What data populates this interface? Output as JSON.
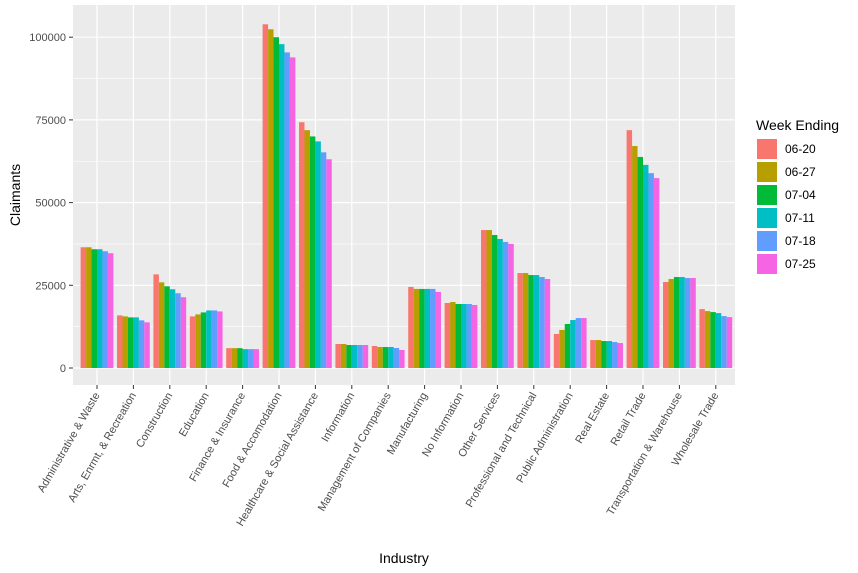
{
  "chart_data": {
    "type": "bar",
    "title": "",
    "xlabel": "Industry",
    "ylabel": "Claimants",
    "ylim": [
      -4500,
      110000
    ],
    "yticks": [
      0,
      25000,
      50000,
      75000,
      100000
    ],
    "ytick_labels": [
      "0",
      "25000",
      "50000",
      "75000",
      "100000"
    ],
    "grid": true,
    "legend": {
      "title": "Week Ending",
      "placement": "right"
    },
    "categories": [
      "Administrative & Waste",
      "Arts, Enrmt, & Recreation",
      "Construction",
      "Education",
      "Finance & Insurance",
      "Food & Accomodation",
      "Healthcare & Social Assistance",
      "Information",
      "Management of Companies",
      "Manufacturing",
      "No Information",
      "Other Services",
      "Professional and Technical",
      "Public Administration",
      "Real Estate",
      "Retail Trade",
      "Transportation & Warehouse",
      "Wholesale Trade"
    ],
    "series": [
      {
        "name": "06-20",
        "color": "#F8766D",
        "values": [
          36500,
          15900,
          28300,
          15600,
          6000,
          103900,
          74300,
          7250,
          6650,
          24500,
          19650,
          41700,
          28700,
          10300,
          8450,
          71900,
          26000,
          17800
        ]
      },
      {
        "name": "06-27",
        "color": "#B79F00",
        "values": [
          36500,
          15600,
          25900,
          16200,
          6000,
          102400,
          71900,
          7250,
          6350,
          23900,
          19950,
          41700,
          28700,
          11500,
          8450,
          67100,
          26900,
          17200
        ]
      },
      {
        "name": "07-04",
        "color": "#00BA38",
        "values": [
          35900,
          15300,
          24700,
          16800,
          6000,
          100000,
          70000,
          6950,
          6350,
          23900,
          19350,
          40200,
          28100,
          13300,
          8150,
          63800,
          27500,
          16900
        ]
      },
      {
        "name": "07-11",
        "color": "#00BFC4",
        "values": [
          35900,
          15300,
          23800,
          17400,
          5700,
          97900,
          68500,
          6950,
          6350,
          23900,
          19350,
          39000,
          28100,
          14500,
          8150,
          61400,
          27500,
          16600
        ]
      },
      {
        "name": "07-18",
        "color": "#619CFF",
        "values": [
          35300,
          14400,
          22600,
          17400,
          5700,
          95400,
          65200,
          6950,
          6050,
          23900,
          19350,
          38100,
          27500,
          15100,
          7850,
          58900,
          27200,
          15700
        ]
      },
      {
        "name": "07-25",
        "color": "#F564E3",
        "values": [
          34700,
          13800,
          21400,
          17100,
          5700,
          93900,
          63100,
          6950,
          5450,
          23000,
          19050,
          37500,
          26900,
          15100,
          7550,
          57400,
          27200,
          15400
        ]
      }
    ]
  }
}
